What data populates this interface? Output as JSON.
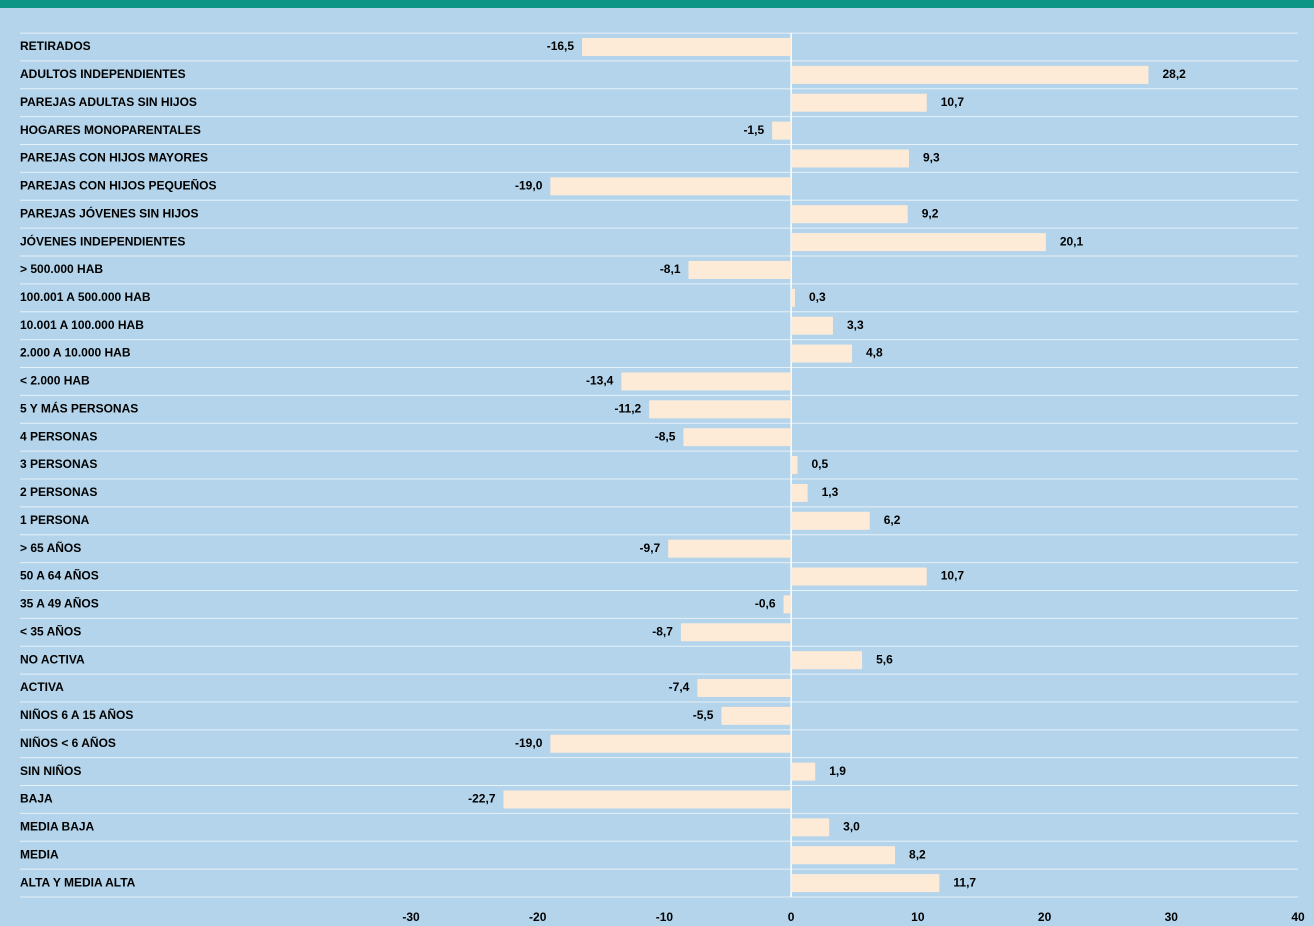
{
  "chart_data": {
    "type": "barh",
    "categories": [
      "RETIRADOS",
      "ADULTOS INDEPENDIENTES",
      "PAREJAS ADULTAS SIN HIJOS",
      "HOGARES MONOPARENTALES",
      "PAREJAS CON HIJOS MAYORES",
      "PAREJAS CON HIJOS PEQUEÑOS",
      "PAREJAS JÓVENES SIN HIJOS",
      "JÓVENES INDEPENDIENTES",
      "> 500.000 HAB",
      "100.001 A 500.000 HAB",
      "10.001 A 100.000 HAB",
      "2.000 A 10.000 HAB",
      "< 2.000 HAB",
      "5 Y MÁS PERSONAS",
      "4 PERSONAS",
      "3 PERSONAS",
      "2 PERSONAS",
      "1 PERSONA",
      "> 65 AÑOS",
      "50 A 64 AÑOS",
      "35 A 49 AÑOS",
      "< 35 AÑOS",
      "NO ACTIVA",
      "ACTIVA",
      "NIÑOS 6 A 15 AÑOS",
      "NIÑOS < 6 AÑOS",
      "SIN NIÑOS",
      "BAJA",
      "MEDIA BAJA",
      "MEDIA",
      "ALTA Y MEDIA ALTA"
    ],
    "values": [
      -16.5,
      28.2,
      10.7,
      -1.5,
      9.3,
      -19.0,
      9.2,
      20.1,
      -8.1,
      0.3,
      3.3,
      4.8,
      -13.4,
      -11.2,
      -8.5,
      0.5,
      1.3,
      6.2,
      -9.7,
      10.7,
      -0.6,
      -8.7,
      5.6,
      -7.4,
      -5.5,
      -19.0,
      1.9,
      -22.7,
      3.0,
      8.2,
      11.7
    ],
    "value_labels": [
      "-16,5",
      "28,2",
      "10,7",
      "-1,5",
      "9,3",
      "-19,0",
      "9,2",
      "20,1",
      "-8,1",
      "0,3",
      "3,3",
      "4,8",
      "-13,4",
      "-11,2",
      "-8,5",
      "0,5",
      "1,3",
      "6,2",
      "-9,7",
      "10,7",
      "-0,6",
      "-8,7",
      "5,6",
      "-7,4",
      "-5,5",
      "-19,0",
      "1,9",
      "-22,7",
      "3,0",
      "8,2",
      "11,7"
    ],
    "color": "#fdebd8",
    "xlim": [
      -30,
      40
    ],
    "xticks": [
      -30,
      -20,
      -10,
      0,
      10,
      20,
      30,
      40
    ]
  }
}
